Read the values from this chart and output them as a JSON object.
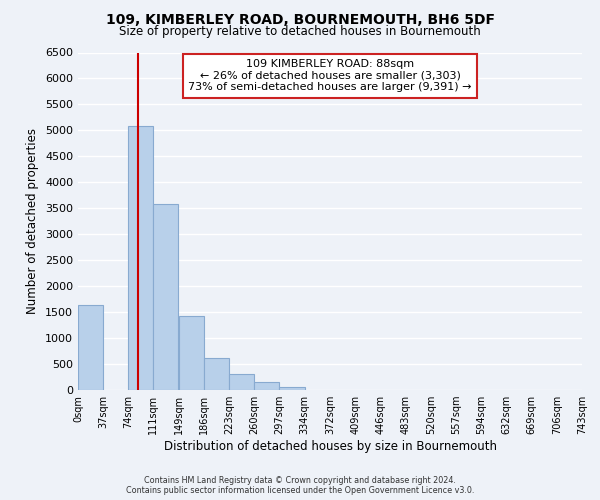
{
  "title": "109, KIMBERLEY ROAD, BOURNEMOUTH, BH6 5DF",
  "subtitle": "Size of property relative to detached houses in Bournemouth",
  "xlabel": "Distribution of detached houses by size in Bournemouth",
  "ylabel": "Number of detached properties",
  "bar_color": "#b8d0ea",
  "bar_edge_color": "#88aad0",
  "bins_left": [
    0,
    37,
    74,
    111,
    149,
    186,
    223,
    260,
    297,
    334,
    372,
    409,
    446,
    483,
    520,
    557,
    594,
    632,
    669,
    706
  ],
  "bin_width": 37,
  "heights": [
    1630,
    0,
    5080,
    3580,
    1430,
    620,
    310,
    155,
    60,
    0,
    0,
    0,
    0,
    0,
    0,
    0,
    0,
    0,
    0,
    0
  ],
  "tick_labels": [
    "0sqm",
    "37sqm",
    "74sqm",
    "111sqm",
    "149sqm",
    "186sqm",
    "223sqm",
    "260sqm",
    "297sqm",
    "334sqm",
    "372sqm",
    "409sqm",
    "446sqm",
    "483sqm",
    "520sqm",
    "557sqm",
    "594sqm",
    "632sqm",
    "669sqm",
    "706sqm",
    "743sqm"
  ],
  "tick_positions": [
    0,
    37,
    74,
    111,
    149,
    186,
    223,
    260,
    297,
    334,
    372,
    409,
    446,
    483,
    520,
    557,
    594,
    632,
    669,
    706,
    743
  ],
  "yticks": [
    0,
    500,
    1000,
    1500,
    2000,
    2500,
    3000,
    3500,
    4000,
    4500,
    5000,
    5500,
    6000,
    6500
  ],
  "ylim": [
    0,
    6500
  ],
  "xlim": [
    0,
    743
  ],
  "property_line_x": 88,
  "property_line_color": "#cc0000",
  "annotation_title": "109 KIMBERLEY ROAD: 88sqm",
  "annotation_line1": "← 26% of detached houses are smaller (3,303)",
  "annotation_line2": "73% of semi-detached houses are larger (9,391) →",
  "footer_line1": "Contains HM Land Registry data © Crown copyright and database right 2024.",
  "footer_line2": "Contains public sector information licensed under the Open Government Licence v3.0.",
  "background_color": "#eef2f8",
  "grid_color": "#ffffff"
}
